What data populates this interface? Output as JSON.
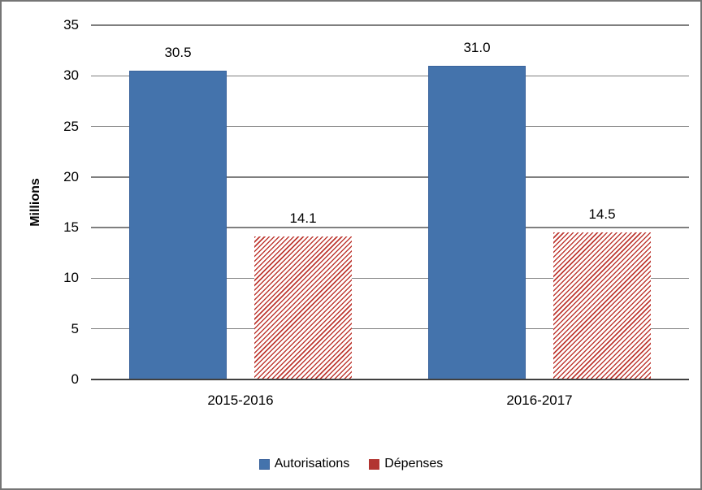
{
  "chart_data": {
    "type": "bar",
    "title": "",
    "ylabel": "Millions",
    "xlabel": "",
    "categories": [
      "2015-2016",
      "2016-2017"
    ],
    "series": [
      {
        "name": "Autorisations",
        "values": [
          30.5,
          31.0
        ],
        "color": "#4473AC",
        "border_color": "#3A639C",
        "pattern": "solid"
      },
      {
        "name": "Dépenses",
        "values": [
          14.1,
          14.5
        ],
        "color": "#BE3A33",
        "legend_color": "#B23531",
        "pattern": "diagonal-hatch"
      }
    ],
    "data_labels": [
      [
        "30.5",
        "31.0"
      ],
      [
        "14.1",
        "14.5"
      ]
    ],
    "ylim": [
      0,
      35
    ],
    "yticks": [
      0,
      5,
      10,
      15,
      20,
      25,
      30,
      35
    ],
    "grid": true,
    "gridline_color": "#7F7F7F",
    "axis_line_color": "#404040",
    "legend_position": "bottom"
  }
}
